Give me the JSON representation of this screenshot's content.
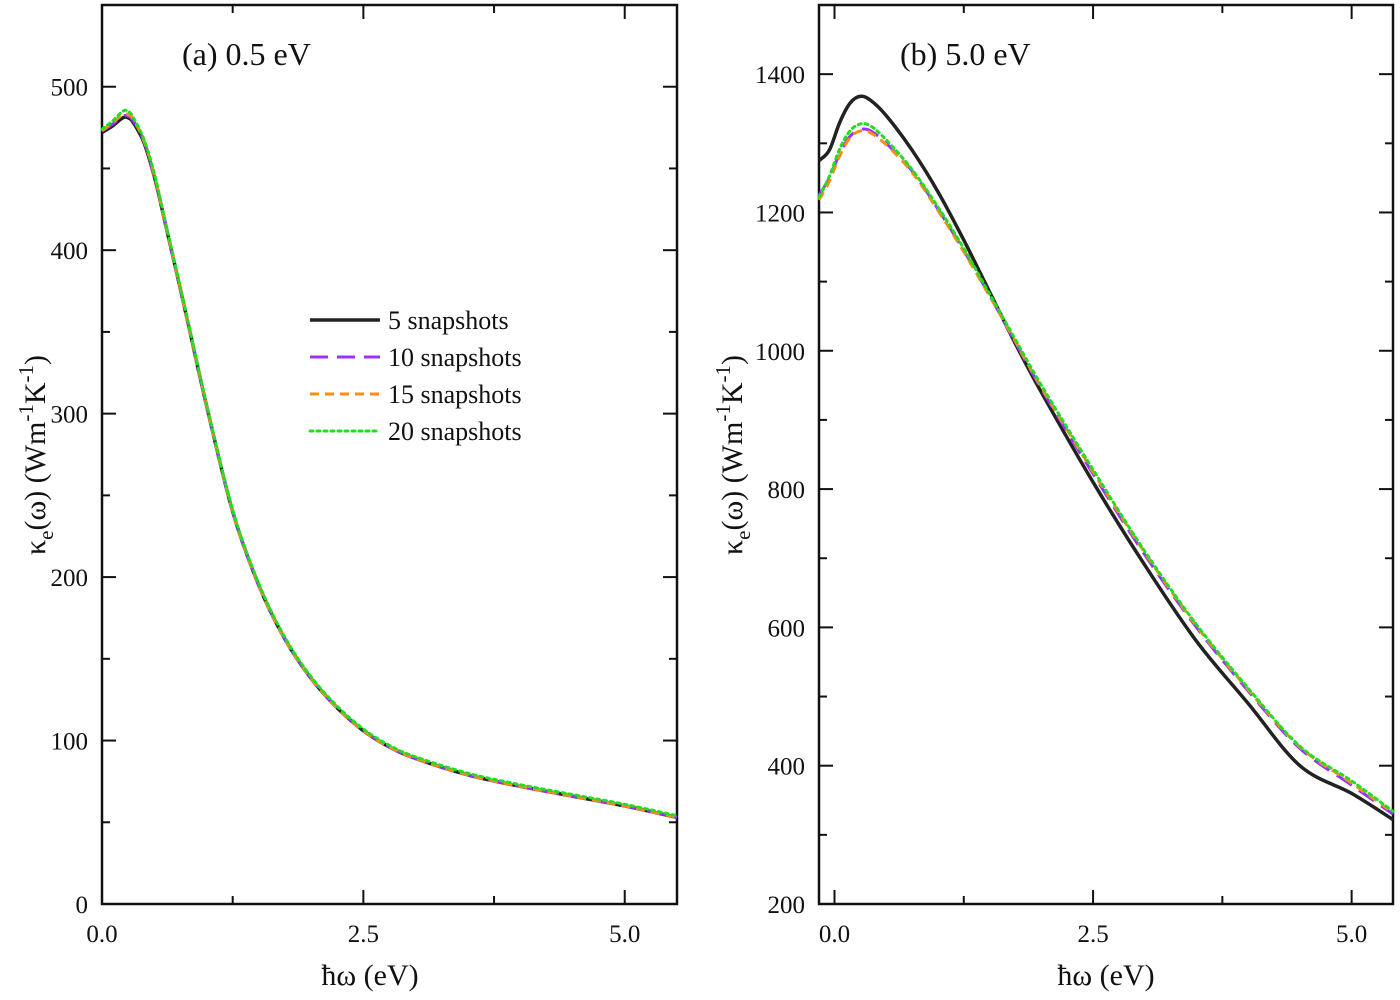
{
  "colors": {
    "5 snapshots": "#222222",
    "10 snapshots": "#9b30ff",
    "15 snapshots": "#ff8c1a",
    "20 snapshots": "#22dd22"
  },
  "legend": {
    "entries": [
      "5 snapshots",
      "10 snapshots",
      "15 snapshots",
      "20 snapshots"
    ]
  },
  "chart_data": [
    {
      "type": "line",
      "title": "(a) 0.5 eV",
      "xlabel": "ħω (eV)",
      "ylabel": "κe(ω) (Wm-1K-1)",
      "xlim": [
        0,
        5.5
      ],
      "ylim": [
        0,
        550
      ],
      "xticks": [
        0.0,
        2.5,
        5.0
      ],
      "xtick_labels": [
        "0.0",
        "2.5",
        "5.0"
      ],
      "yticks": [
        0,
        100,
        200,
        300,
        400,
        500
      ],
      "ytick_labels": [
        "0",
        "100",
        "200",
        "300",
        "400",
        "500"
      ],
      "grid": false,
      "legend_position": "center-right",
      "series": [
        {
          "name": "5 snapshots",
          "style": "solid",
          "x": [
            0.0,
            0.1,
            0.2,
            0.25,
            0.3,
            0.4,
            0.5,
            0.6,
            0.8,
            1.0,
            1.25,
            1.5,
            1.75,
            2.0,
            2.25,
            2.5,
            2.75,
            3.0,
            3.5,
            4.0,
            4.5,
            5.0,
            5.5
          ],
          "y": [
            472,
            476,
            481,
            481,
            478,
            466,
            445,
            418,
            362,
            305,
            240,
            195,
            162,
            138,
            120,
            106,
            96,
            89,
            79,
            72,
            66,
            60,
            53
          ]
        },
        {
          "name": "10 snapshots",
          "style": "dash",
          "x": [
            0.0,
            0.1,
            0.2,
            0.25,
            0.3,
            0.4,
            0.5,
            0.6,
            0.8,
            1.0,
            1.25,
            1.5,
            1.75,
            2.0,
            2.25,
            2.5,
            2.75,
            3.0,
            3.5,
            4.0,
            4.5,
            5.0,
            5.5
          ],
          "y": [
            473,
            477,
            482,
            482,
            479,
            467,
            445,
            418,
            362,
            305,
            240,
            195,
            162,
            138,
            120,
            106,
            96,
            89,
            79,
            72,
            66,
            60,
            53
          ]
        },
        {
          "name": "15 snapshots",
          "style": "shortdash",
          "x": [
            0.0,
            0.1,
            0.2,
            0.25,
            0.3,
            0.4,
            0.5,
            0.6,
            0.8,
            1.0,
            1.25,
            1.5,
            1.75,
            2.0,
            2.25,
            2.5,
            2.75,
            3.0,
            3.5,
            4.0,
            4.5,
            5.0,
            5.5
          ],
          "y": [
            473,
            478,
            483,
            483,
            480,
            467,
            446,
            418,
            362,
            305,
            240,
            195,
            162,
            138,
            120,
            106,
            96,
            89,
            79,
            72,
            66,
            60,
            53
          ]
        },
        {
          "name": "20 snapshots",
          "style": "dot",
          "x": [
            0.0,
            0.1,
            0.2,
            0.25,
            0.3,
            0.4,
            0.5,
            0.6,
            0.8,
            1.0,
            1.25,
            1.5,
            1.75,
            2.0,
            2.25,
            2.5,
            2.75,
            3.0,
            3.5,
            4.0,
            4.5,
            5.0,
            5.5
          ],
          "y": [
            474,
            479,
            485,
            485,
            481,
            468,
            447,
            419,
            363,
            306,
            241,
            196,
            163,
            139,
            121,
            107,
            97,
            90,
            80,
            73,
            67,
            61,
            54
          ]
        }
      ]
    },
    {
      "type": "line",
      "title": "(b) 5.0 eV",
      "xlabel": "ħω (eV)",
      "ylabel": "κe(ω) (Wm-1K-1)",
      "xlim": [
        -0.15,
        5.4
      ],
      "ylim": [
        200,
        1500
      ],
      "xticks": [
        0.0,
        2.5,
        5.0
      ],
      "xtick_labels": [
        "0.0",
        "2.5",
        "5.0"
      ],
      "yticks": [
        200,
        400,
        600,
        800,
        1000,
        1200,
        1400
      ],
      "ytick_labels": [
        "200",
        "400",
        "600",
        "800",
        "1000",
        "1200",
        "1400"
      ],
      "grid": false,
      "series": [
        {
          "name": "5 snapshots",
          "style": "solid",
          "x": [
            -0.15,
            -0.05,
            0.05,
            0.15,
            0.25,
            0.35,
            0.5,
            0.75,
            1.0,
            1.25,
            1.5,
            1.75,
            2.0,
            2.5,
            3.0,
            3.5,
            4.0,
            4.5,
            5.0,
            5.4
          ],
          "y": [
            1275,
            1290,
            1330,
            1358,
            1368,
            1362,
            1340,
            1290,
            1230,
            1160,
            1085,
            1010,
            940,
            810,
            690,
            580,
            490,
            400,
            360,
            322
          ]
        },
        {
          "name": "10 snapshots",
          "style": "dash",
          "x": [
            -0.15,
            -0.05,
            0.05,
            0.15,
            0.25,
            0.35,
            0.5,
            0.75,
            1.0,
            1.25,
            1.5,
            1.75,
            2.0,
            2.5,
            3.0,
            3.5,
            4.0,
            4.5,
            5.0,
            5.4
          ],
          "y": [
            1225,
            1250,
            1285,
            1310,
            1320,
            1318,
            1300,
            1260,
            1205,
            1145,
            1080,
            1012,
            945,
            822,
            705,
            600,
            508,
            425,
            372,
            330
          ]
        },
        {
          "name": "15 snapshots",
          "style": "shortdash",
          "x": [
            -0.15,
            -0.05,
            0.05,
            0.15,
            0.25,
            0.35,
            0.5,
            0.75,
            1.0,
            1.25,
            1.5,
            1.75,
            2.0,
            2.5,
            3.0,
            3.5,
            4.0,
            4.5,
            5.0,
            5.4
          ],
          "y": [
            1218,
            1245,
            1282,
            1308,
            1318,
            1315,
            1298,
            1258,
            1203,
            1143,
            1079,
            1013,
            947,
            825,
            708,
            602,
            510,
            427,
            375,
            332
          ]
        },
        {
          "name": "20 snapshots",
          "style": "dot",
          "x": [
            -0.15,
            -0.05,
            0.05,
            0.15,
            0.25,
            0.35,
            0.5,
            0.75,
            1.0,
            1.25,
            1.5,
            1.75,
            2.0,
            2.5,
            3.0,
            3.5,
            4.0,
            4.5,
            5.0,
            5.4
          ],
          "y": [
            1222,
            1252,
            1292,
            1318,
            1328,
            1325,
            1305,
            1262,
            1208,
            1148,
            1082,
            1016,
            950,
            828,
            710,
            604,
            512,
            428,
            378,
            334
          ]
        }
      ]
    }
  ]
}
